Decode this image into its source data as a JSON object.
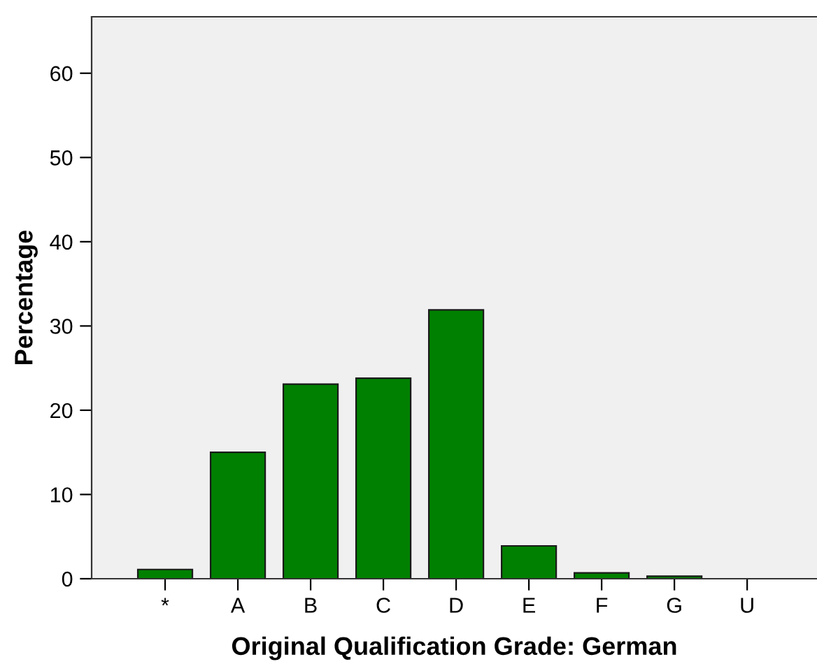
{
  "chart_data": {
    "type": "bar",
    "xlabel": "Original Qualification Grade: German",
    "ylabel": "Percentage",
    "categories": [
      "*",
      "A",
      "B",
      "C",
      "D",
      "E",
      "F",
      "G",
      "U"
    ],
    "values": [
      1.1,
      15.0,
      23.1,
      23.8,
      31.9,
      3.9,
      0.7,
      0.3,
      null
    ],
    "color": "#008000",
    "ylim": [
      0,
      66.7
    ],
    "yticks": [
      0,
      10,
      20,
      30,
      40,
      50,
      60
    ],
    "grid": false,
    "legend": false
  }
}
